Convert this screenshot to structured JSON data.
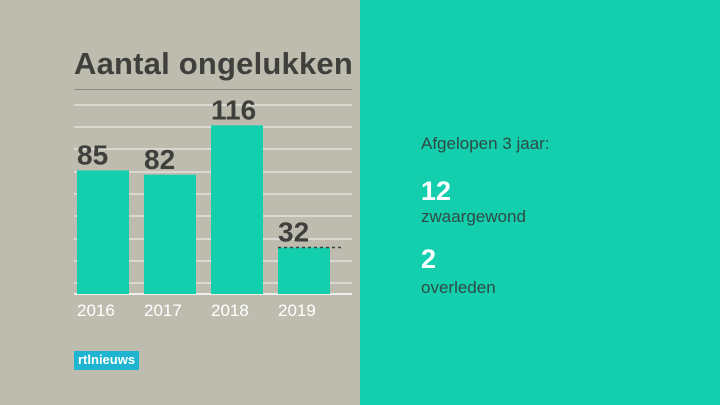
{
  "colors": {
    "left_background": "#bdbcaf",
    "right_background": "#14cfad",
    "bar": "#14cfad",
    "text_dark": "#3f3f3c",
    "text_white": "#ffffff",
    "logo_background": "#1fb4cf"
  },
  "chart_data": {
    "type": "bar",
    "title": "Aantal ongelukken",
    "categories": [
      "2016",
      "2017",
      "2018",
      "2019"
    ],
    "values": [
      85,
      82,
      116,
      32
    ],
    "data_labels": [
      "85",
      "82",
      "116",
      "32"
    ],
    "ylim": [
      0,
      130
    ],
    "grid": true,
    "partial_last_bar": true
  },
  "summary": {
    "heading": "Afgelopen 3 jaar:",
    "stats": [
      {
        "value": "12",
        "label": "zwaargewond"
      },
      {
        "value": "2",
        "label": "overleden"
      }
    ]
  },
  "logo": {
    "text": "rtlnieuws"
  }
}
